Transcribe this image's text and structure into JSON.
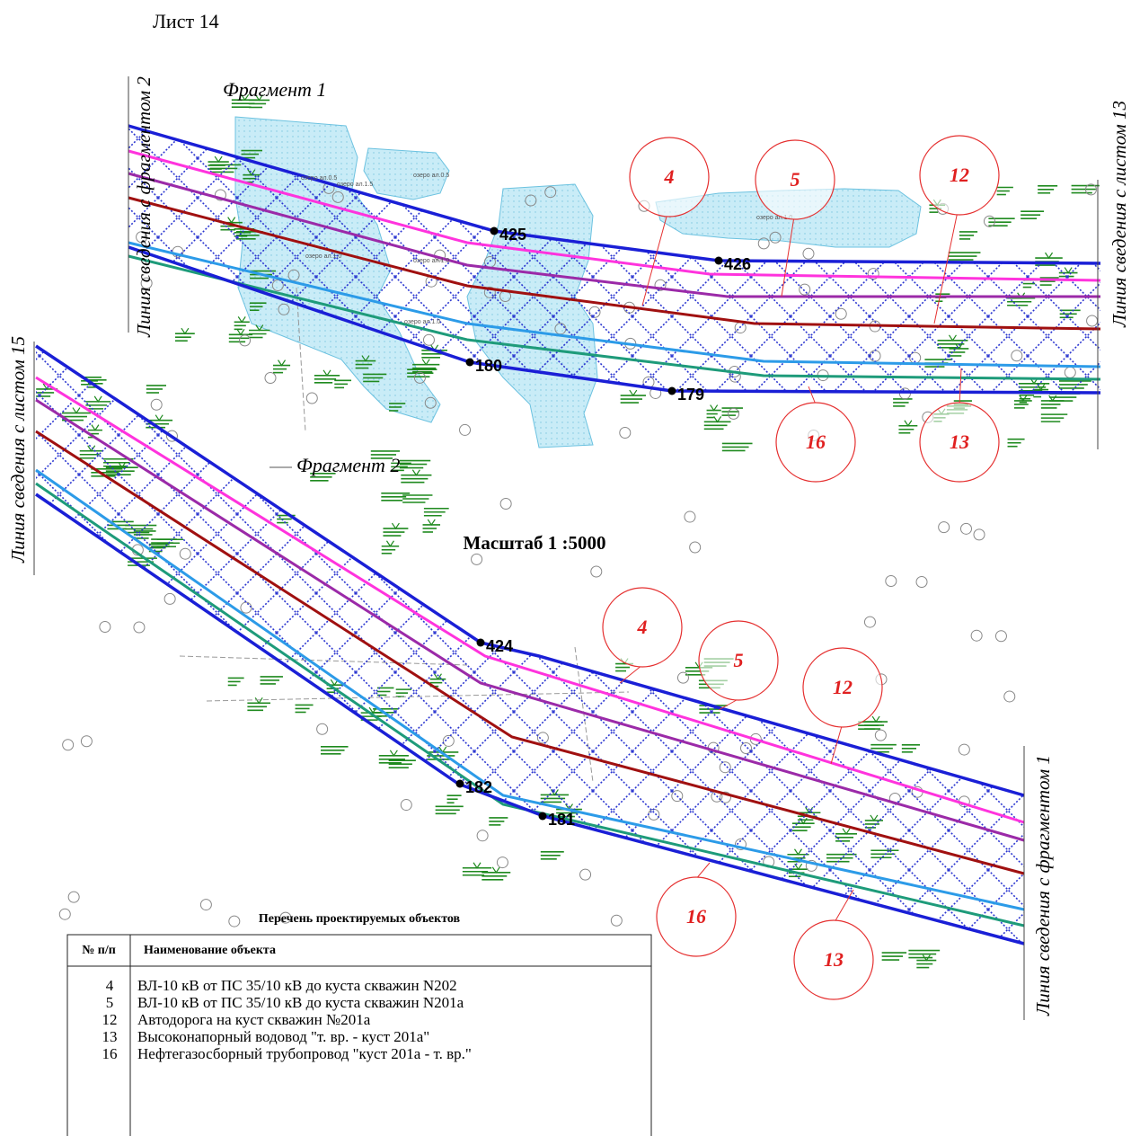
{
  "sheet": "Лист 14",
  "scale": "Масштаб 1 :5000",
  "fragments": [
    {
      "title": "Фрагмент 1",
      "join_labels": [
        "Линия сведения с фрагментом 2",
        "Линия сведения с листом 13"
      ],
      "points": [
        "425",
        "426",
        "180",
        "179"
      ],
      "callouts": [
        "4",
        "5",
        "12",
        "16",
        "13"
      ],
      "lake_labels": [
        "озеро ал.0.5",
        "озеро ал.1.5",
        "озеро ал.0.5",
        "озеро ал.1.0",
        "озеро ал.1.0",
        "озеро ал.1.0",
        "озеро ал.1.0"
      ]
    },
    {
      "title": "Фрагмент 2",
      "join_labels": [
        "Линия сведения с листом 15",
        "Линия сведения с фрагментом 1"
      ],
      "points": [
        "424",
        "182",
        "181"
      ],
      "callouts": [
        "4",
        "5",
        "12",
        "16",
        "13"
      ]
    }
  ],
  "table": {
    "title": "Перечень проектируемых объектов",
    "header": [
      "№ п/п",
      "Наименование объекта"
    ],
    "rows": [
      [
        "4",
        "ВЛ-10 кВ от ПС 35/10 кВ до куста скважин N202"
      ],
      [
        "5",
        "ВЛ-10 кВ от ПС 35/10 кВ до куста скважин N201а"
      ],
      [
        "12",
        "Автодорога на куст скважин №201а"
      ],
      [
        "13",
        "Высоконапорный водовод \"т. вр. -  куст 201а\""
      ],
      [
        "16",
        "Нефтегазосборный трубопровод \"куст 201а - т. вр.\""
      ]
    ]
  }
}
